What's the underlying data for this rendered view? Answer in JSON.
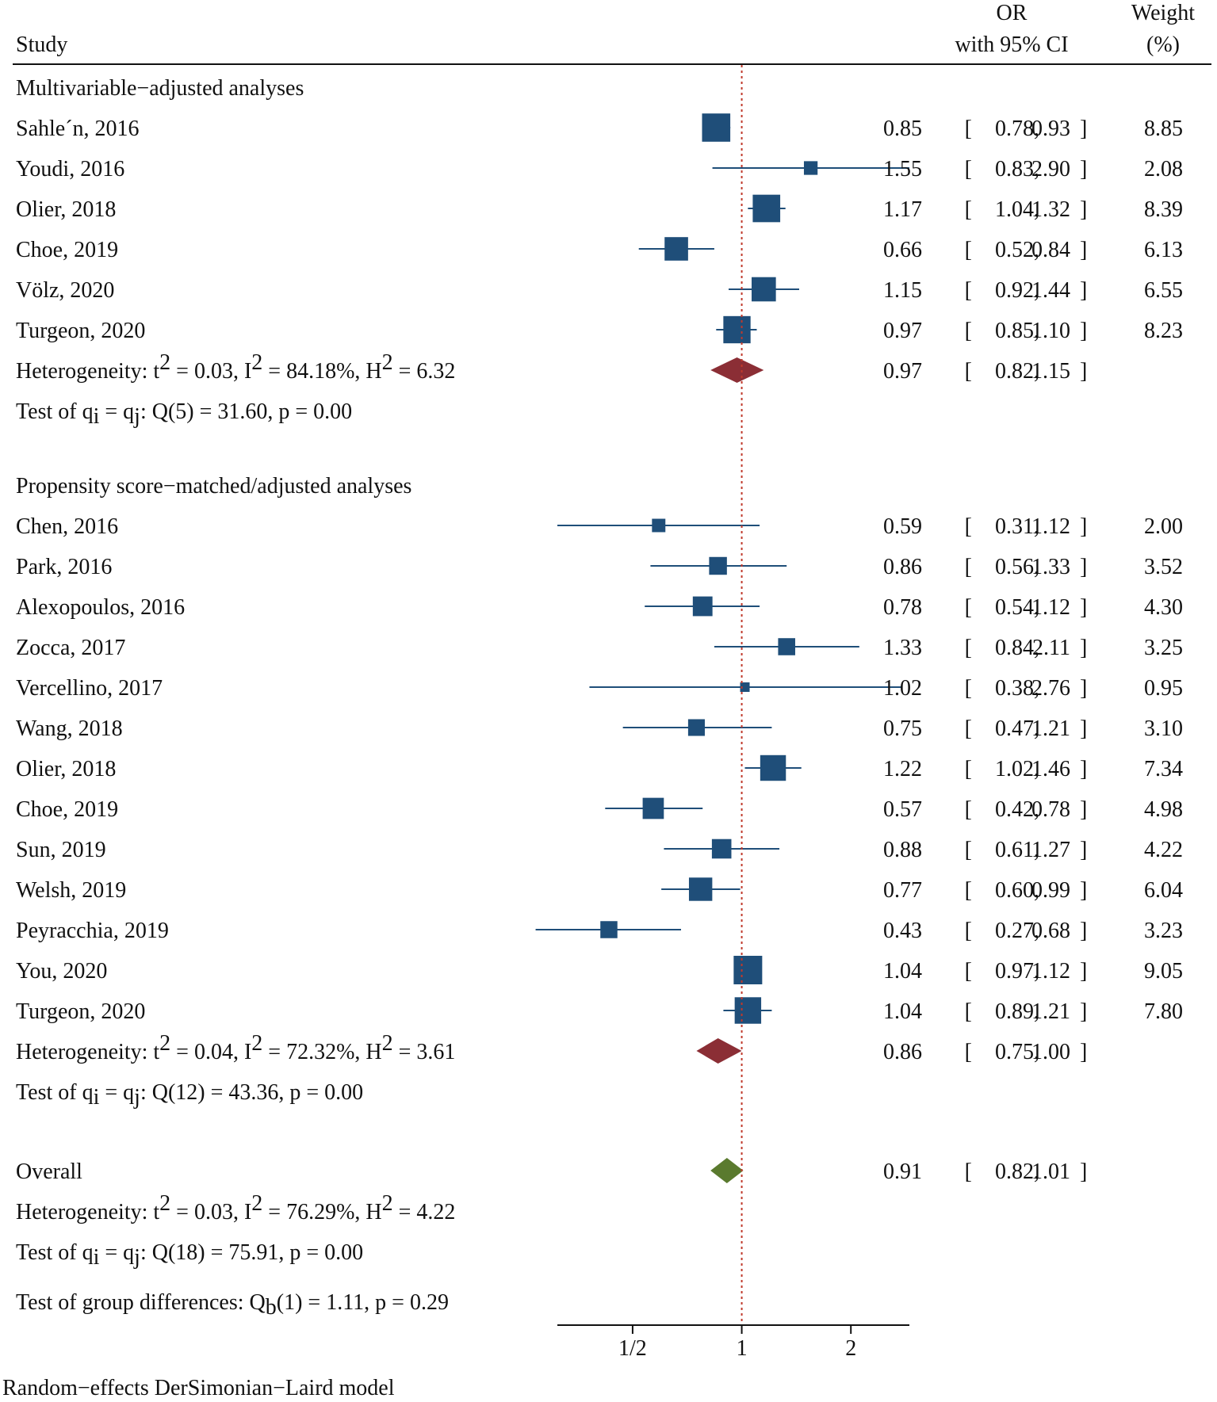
{
  "chart_data": {
    "type": "forest",
    "headers": {
      "study": "Study",
      "or_line1": "OR",
      "or_line2": "with 95% CI",
      "weight_line1": "Weight",
      "weight_line2": "(%)"
    },
    "x_scale": "log",
    "reference_line": 1,
    "xlim": [
      0.31,
      2.9
    ],
    "x_ticks": [
      {
        "value": 0.5,
        "label": "1/2"
      },
      {
        "value": 1,
        "label": "1"
      },
      {
        "value": 2,
        "label": "2"
      }
    ],
    "footnote": "Random−effects DerSimonian−Laird model",
    "colors": {
      "study_marker": "#1f4e79",
      "ci_line": "#1f4e79",
      "subgroup_diamond": "#8b2e35",
      "overall_diamond": "#5a7a2e",
      "reference_line": "#c0392b"
    },
    "groups": [
      {
        "name": "Multivariable−adjusted analyses",
        "studies": [
          {
            "study": "Sahle´n, 2016",
            "or": 0.85,
            "lo": 0.78,
            "hi": 0.93,
            "or_text": "0.85",
            "lo_text": "0.78",
            "hi_text": "0.93",
            "weight": 8.85,
            "weight_text": "8.85"
          },
          {
            "study": "Youdi, 2016",
            "or": 1.55,
            "lo": 0.83,
            "hi": 2.9,
            "or_text": "1.55",
            "lo_text": "0.83",
            "hi_text": "2.90",
            "weight": 2.08,
            "weight_text": "2.08"
          },
          {
            "study": "Olier, 2018",
            "or": 1.17,
            "lo": 1.04,
            "hi": 1.32,
            "or_text": "1.17",
            "lo_text": "1.04",
            "hi_text": "1.32",
            "weight": 8.39,
            "weight_text": "8.39"
          },
          {
            "study": "Choe, 2019",
            "or": 0.66,
            "lo": 0.52,
            "hi": 0.84,
            "or_text": "0.66",
            "lo_text": "0.52",
            "hi_text": "0.84",
            "weight": 6.13,
            "weight_text": "6.13"
          },
          {
            "study": "Völz, 2020",
            "or": 1.15,
            "lo": 0.92,
            "hi": 1.44,
            "or_text": "1.15",
            "lo_text": "0.92",
            "hi_text": "1.44",
            "weight": 6.55,
            "weight_text": "6.55"
          },
          {
            "study": "Turgeon, 2020",
            "or": 0.97,
            "lo": 0.85,
            "hi": 1.1,
            "or_text": "0.97",
            "lo_text": "0.85",
            "hi_text": "1.10",
            "weight": 8.23,
            "weight_text": "8.23"
          }
        ],
        "pooled": {
          "or": 0.97,
          "lo": 0.82,
          "hi": 1.15,
          "or_text": "0.97",
          "lo_text": "0.82",
          "hi_text": "1.15"
        },
        "heterogeneity": {
          "prefix": "Heterogeneity: t",
          "i2_text": " = 0.03, I",
          "h2_text": " = 84.18%, H",
          "tail": " = 6.32",
          "sup": "2"
        },
        "test": {
          "prefix": "Test of q",
          "sub_i": "i",
          "eq": " = q",
          "sub_j": "j",
          "tail": ": Q(5) = 31.60, p = 0.00"
        }
      },
      {
        "name": "Propensity score−matched/adjusted analyses",
        "studies": [
          {
            "study": "Chen, 2016",
            "or": 0.59,
            "lo": 0.31,
            "hi": 1.12,
            "or_text": "0.59",
            "lo_text": "0.31",
            "hi_text": "1.12",
            "weight": 2.0,
            "weight_text": "2.00"
          },
          {
            "study": "Park, 2016",
            "or": 0.86,
            "lo": 0.56,
            "hi": 1.33,
            "or_text": "0.86",
            "lo_text": "0.56",
            "hi_text": "1.33",
            "weight": 3.52,
            "weight_text": "3.52"
          },
          {
            "study": "Alexopoulos, 2016",
            "or": 0.78,
            "lo": 0.54,
            "hi": 1.12,
            "or_text": "0.78",
            "lo_text": "0.54",
            "hi_text": "1.12",
            "weight": 4.3,
            "weight_text": "4.30"
          },
          {
            "study": "Zocca, 2017",
            "or": 1.33,
            "lo": 0.84,
            "hi": 2.11,
            "or_text": "1.33",
            "lo_text": "0.84",
            "hi_text": "2.11",
            "weight": 3.25,
            "weight_text": "3.25"
          },
          {
            "study": "Vercellino, 2017",
            "or": 1.02,
            "lo": 0.38,
            "hi": 2.76,
            "or_text": "1.02",
            "lo_text": "0.38",
            "hi_text": "2.76",
            "weight": 0.95,
            "weight_text": "0.95"
          },
          {
            "study": "Wang, 2018",
            "or": 0.75,
            "lo": 0.47,
            "hi": 1.21,
            "or_text": "0.75",
            "lo_text": "0.47",
            "hi_text": "1.21",
            "weight": 3.1,
            "weight_text": "3.10"
          },
          {
            "study": "Olier, 2018",
            "or": 1.22,
            "lo": 1.02,
            "hi": 1.46,
            "or_text": "1.22",
            "lo_text": "1.02",
            "hi_text": "1.46",
            "weight": 7.34,
            "weight_text": "7.34"
          },
          {
            "study": "Choe, 2019",
            "or": 0.57,
            "lo": 0.42,
            "hi": 0.78,
            "or_text": "0.57",
            "lo_text": "0.42",
            "hi_text": "0.78",
            "weight": 4.98,
            "weight_text": "4.98"
          },
          {
            "study": "Sun, 2019",
            "or": 0.88,
            "lo": 0.61,
            "hi": 1.27,
            "or_text": "0.88",
            "lo_text": "0.61",
            "hi_text": "1.27",
            "weight": 4.22,
            "weight_text": "4.22"
          },
          {
            "study": "Welsh, 2019",
            "or": 0.77,
            "lo": 0.6,
            "hi": 0.99,
            "or_text": "0.77",
            "lo_text": "0.60",
            "hi_text": "0.99",
            "weight": 6.04,
            "weight_text": "6.04"
          },
          {
            "study": "Peyracchia, 2019",
            "or": 0.43,
            "lo": 0.27,
            "hi": 0.68,
            "or_text": "0.43",
            "lo_text": "0.27",
            "hi_text": "0.68",
            "weight": 3.23,
            "weight_text": "3.23"
          },
          {
            "study": "You, 2020",
            "or": 1.04,
            "lo": 0.97,
            "hi": 1.12,
            "or_text": "1.04",
            "lo_text": "0.97",
            "hi_text": "1.12",
            "weight": 9.05,
            "weight_text": "9.05"
          },
          {
            "study": "Turgeon, 2020",
            "or": 1.04,
            "lo": 0.89,
            "hi": 1.21,
            "or_text": "1.04",
            "lo_text": "0.89",
            "hi_text": "1.21",
            "weight": 7.8,
            "weight_text": "7.80"
          }
        ],
        "pooled": {
          "or": 0.86,
          "lo": 0.75,
          "hi": 1.0,
          "or_text": "0.86",
          "lo_text": "0.75",
          "hi_text": "1.00"
        },
        "heterogeneity": {
          "prefix": "Heterogeneity: t",
          "i2_text": " = 0.04, I",
          "h2_text": " = 72.32%, H",
          "tail": " = 3.61",
          "sup": "2"
        },
        "test": {
          "prefix": "Test of q",
          "sub_i": "i",
          "eq": " = q",
          "sub_j": "j",
          "tail": ": Q(12) = 43.36, p = 0.00"
        }
      }
    ],
    "overall": {
      "label": "Overall",
      "or": 0.91,
      "lo": 0.82,
      "hi": 1.01,
      "or_text": "0.91",
      "lo_text": "0.82",
      "hi_text": "1.01",
      "heterogeneity": {
        "prefix": "Heterogeneity: t",
        "i2_text": " = 0.03, I",
        "h2_text": " = 76.29%, H",
        "tail": " = 4.22",
        "sup": "2"
      },
      "test": {
        "prefix": "Test of q",
        "sub_i": "i",
        "eq": " = q",
        "sub_j": "j",
        "tail": ": Q(18) = 75.91, p = 0.00"
      }
    },
    "group_difference_test": {
      "prefix": "Test of group differences: Q",
      "sub": "b",
      "tail": "(1) = 1.11, p = 0.29"
    }
  }
}
